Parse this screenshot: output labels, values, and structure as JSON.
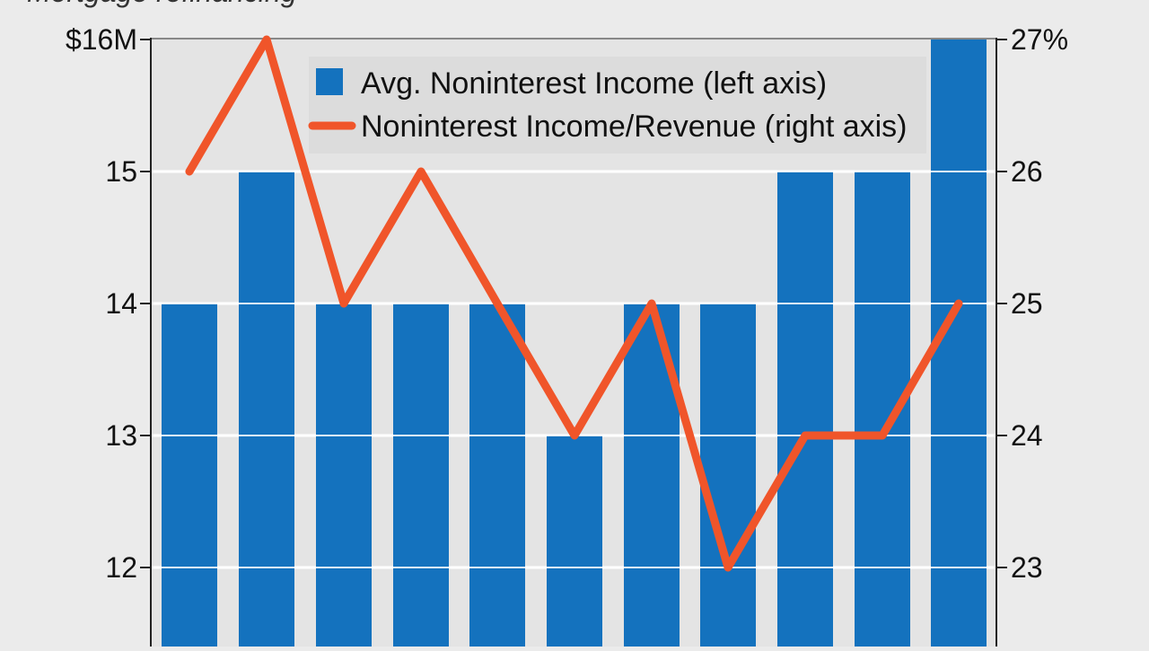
{
  "subtitle": "Mortgage refinancing",
  "colors": {
    "background": "#ebebeb",
    "plot_area": "#e4e4e4",
    "bar": "#1472be",
    "line": "#f0552a",
    "grid": "#ffffff",
    "axis": "#222222"
  },
  "chart_data": {
    "type": "bar",
    "categories": [
      "",
      "",
      "",
      "",
      "",
      "",
      "",
      "",
      "",
      "",
      ""
    ],
    "series": [
      {
        "name": "Avg. Noninterest Income (left axis)",
        "type": "bar",
        "axis": "left",
        "values": [
          14,
          15,
          14,
          14,
          14,
          13,
          14,
          14,
          15,
          15,
          16
        ]
      },
      {
        "name": "Noninterest Income/Revenue (right axis)",
        "type": "line",
        "axis": "right",
        "values": [
          26,
          27,
          25,
          26,
          25,
          24,
          25,
          23,
          24,
          24,
          25
        ]
      }
    ],
    "left_axis": {
      "ticks": [
        12,
        13,
        14,
        15,
        16
      ],
      "tick_labels": [
        "12",
        "13",
        "14",
        "15",
        "$16M"
      ],
      "range": [
        11.5,
        16
      ]
    },
    "right_axis": {
      "ticks": [
        23,
        24,
        25,
        26,
        27
      ],
      "tick_labels": [
        "23",
        "24",
        "25",
        "26",
        "27%"
      ],
      "range": [
        22.5,
        27
      ]
    },
    "grid": true,
    "legend_position": "top-right"
  }
}
